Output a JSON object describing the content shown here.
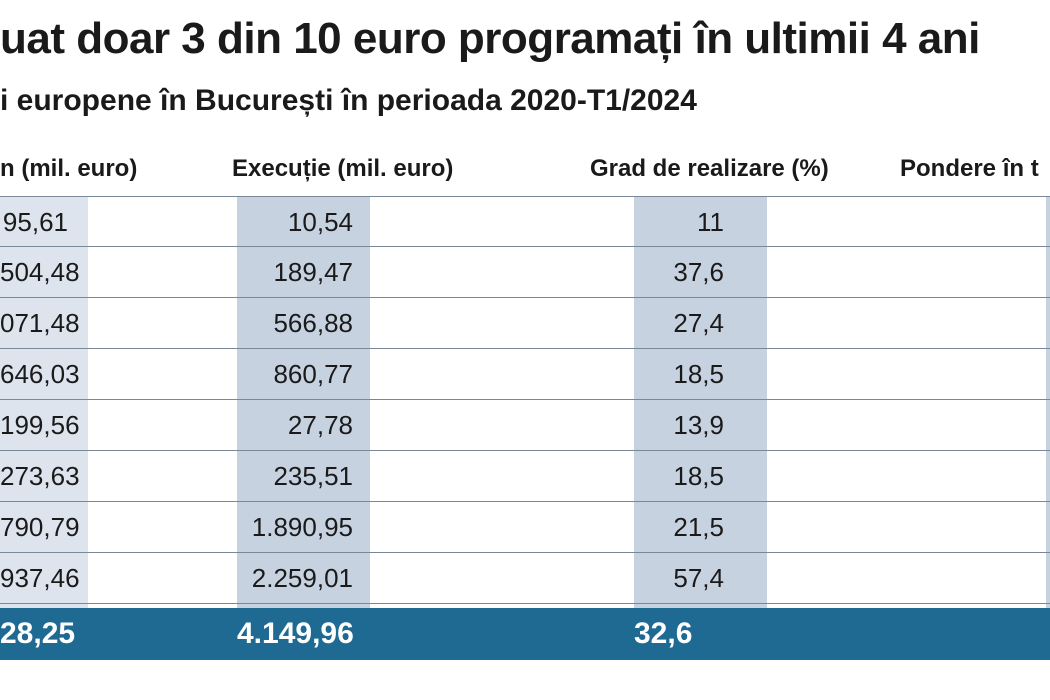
{
  "chart_data": {
    "type": "table",
    "title": "uat doar 3 din 10 euro programați în ultimii 4 ani",
    "subtitle": "i europene în București în perioada 2020-T1/2024",
    "columns": [
      "n (mil. euro)",
      "Execuție (mil. euro)",
      "Grad de realizare (%)",
      "Pondere în t"
    ],
    "rows": [
      [
        "95,61",
        "10,54",
        "11"
      ],
      [
        "504,48",
        "189,47",
        "37,6"
      ],
      [
        "071,48",
        "566,88",
        "27,4"
      ],
      [
        "646,03",
        "860,77",
        "18,5"
      ],
      [
        "199,56",
        "27,78",
        "13,9"
      ],
      [
        "273,63",
        "235,51",
        "18,5"
      ],
      [
        "790,79",
        "1.890,95",
        "21,5"
      ],
      [
        "937,46",
        "2.259,01",
        "57,4"
      ]
    ],
    "total": [
      "28,25",
      "4.149,96",
      "32,6"
    ]
  },
  "colors": {
    "total_bg": "#1e6a93",
    "shade": "#c7d2e0",
    "text": "#1a1a1a"
  }
}
